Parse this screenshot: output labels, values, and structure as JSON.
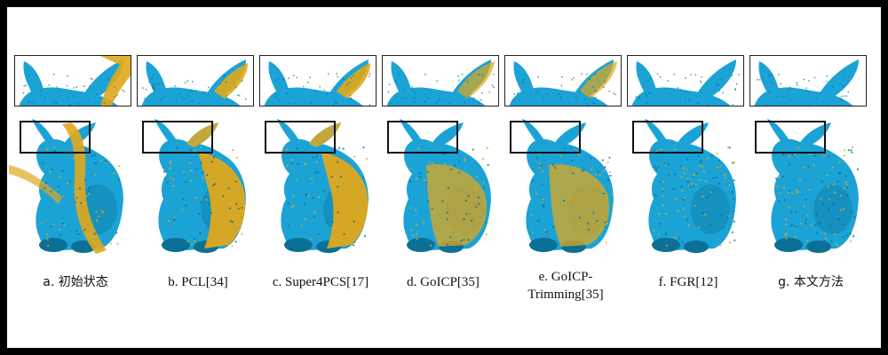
{
  "figure": {
    "colors": {
      "source_cloud": "#1ba3d6",
      "target_cloud": "#e0a81c",
      "shadow": "#0b6f96",
      "frame": "#000000"
    },
    "panels": [
      {
        "caption": "a.  初始状态",
        "cjk": true,
        "state": "initial"
      },
      {
        "caption": "b. PCL[34]",
        "cjk": false,
        "state": "half"
      },
      {
        "caption": "c. Super4PCS[17]",
        "cjk": false,
        "state": "half"
      },
      {
        "caption": "d. GoICP[35]",
        "cjk": false,
        "state": "mixed"
      },
      {
        "caption": "e. GoICP-\nTrimming[35]",
        "cjk": false,
        "state": "mixed"
      },
      {
        "caption": "f. FGR[12]",
        "cjk": false,
        "state": "aligned"
      },
      {
        "caption": "g.  本文方法",
        "cjk": true,
        "state": "aligned"
      }
    ]
  }
}
